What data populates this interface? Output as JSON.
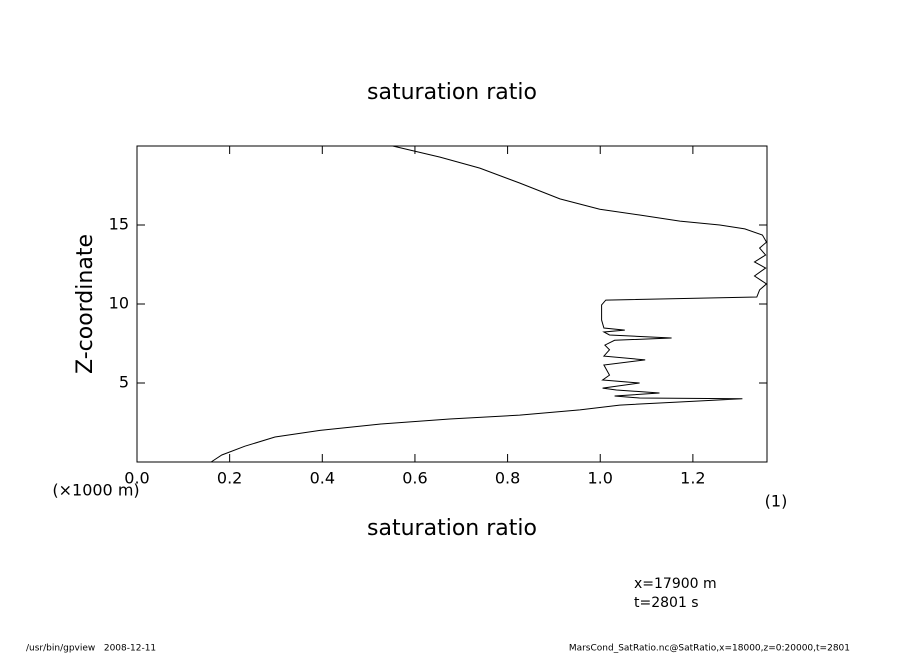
{
  "chart_data": {
    "type": "line",
    "title": "saturation ratio",
    "x_label": "saturation ratio",
    "x_unit": "(1)",
    "y_label": "Z-coordinate",
    "y_unit": "(×1000 m)",
    "annotations": [
      "x=17900 m",
      "t=2801 s"
    ],
    "footer_left": "/usr/bin/gpview   2008-12-11",
    "footer_right": "MarsCond_SatRatio.nc@SatRatio,x=18000,z=0:20000,t=2801",
    "color": "#000000",
    "x": [
      0.16,
      0.183,
      0.233,
      0.298,
      0.395,
      0.524,
      0.675,
      0.826,
      0.956,
      1.042,
      1.171,
      1.307,
      1.085,
      1.031,
      1.128,
      1.035,
      1.005,
      1.085,
      1.005,
      1.02,
      1.008,
      1.097,
      1.008,
      1.02,
      1.01,
      1.031,
      1.154,
      1.02,
      1.008,
      1.053,
      1.008,
      1.003,
      1.003,
      1.012,
      1.338,
      1.344,
      1.359,
      1.333,
      1.357,
      1.333,
      1.357,
      1.344,
      1.359,
      1.35,
      1.312,
      1.258,
      1.172,
      1.085,
      0.999,
      0.913,
      0.826,
      0.74,
      0.654,
      0.552
    ],
    "values": [
      0,
      0.44,
      1.0,
      1.58,
      2.0,
      2.4,
      2.72,
      2.97,
      3.3,
      3.6,
      3.8,
      4.0,
      4.05,
      4.18,
      4.37,
      4.56,
      4.68,
      5.0,
      5.19,
      5.5,
      6.14,
      6.46,
      6.7,
      7.1,
      7.4,
      7.7,
      7.85,
      8.04,
      8.23,
      8.35,
      8.48,
      8.99,
      9.94,
      10.25,
      10.44,
      10.89,
      11.27,
      11.77,
      12.28,
      12.66,
      13.1,
      13.54,
      13.92,
      14.37,
      14.75,
      15.0,
      15.25,
      15.63,
      16.0,
      16.65,
      17.66,
      18.6,
      19.3,
      20.0
    ],
    "xlim": [
      0,
      1.36
    ],
    "ylim": [
      0,
      20
    ],
    "xticks": [
      {
        "value": 0,
        "label": "0.0"
      },
      0.2,
      0.4,
      0.6,
      0.8,
      {
        "value": 1,
        "label": "1.0"
      },
      1.2
    ],
    "yticks": [
      5,
      10,
      15
    ]
  }
}
